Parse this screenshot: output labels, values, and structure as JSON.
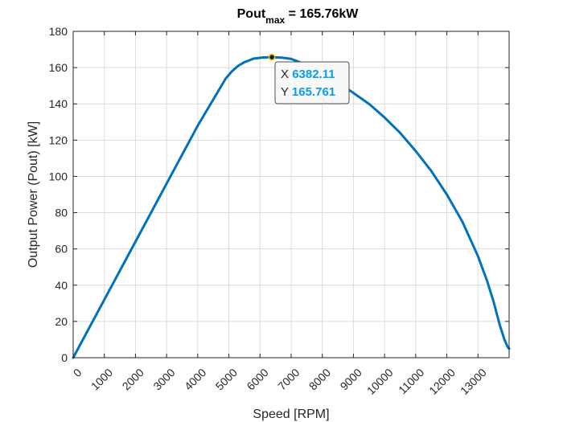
{
  "chart_data": {
    "type": "line",
    "title": {
      "main": "Pout",
      "subscript": "max",
      "suffix": " = 165.76kW"
    },
    "xlabel": "Speed [RPM]",
    "ylabel": "Output Power (Pout) [kW]",
    "xlim": [
      0,
      14000
    ],
    "ylim": [
      0,
      180
    ],
    "xticks": [
      0,
      1000,
      2000,
      3000,
      4000,
      5000,
      6000,
      7000,
      8000,
      9000,
      10000,
      11000,
      12000,
      13000
    ],
    "yticks": [
      0,
      20,
      40,
      60,
      80,
      100,
      120,
      140,
      160,
      180
    ],
    "grid": true,
    "series": [
      {
        "color": "#0072bd",
        "x": [
          0,
          1000,
          2000,
          3000,
          4000,
          4900,
          5100,
          5300,
          5500,
          5800,
          6100,
          6382.11,
          6700,
          7000,
          7500,
          8000,
          8500,
          9000,
          9500,
          10000,
          10500,
          11000,
          11500,
          12000,
          12500,
          13000,
          13300,
          13500,
          13700,
          13850,
          13950,
          14000
        ],
        "y": [
          0,
          32,
          64,
          96,
          128,
          154,
          158,
          161,
          163,
          165,
          165.6,
          165.761,
          165.5,
          164.8,
          161.5,
          157.5,
          152,
          146,
          140,
          132.5,
          124,
          114,
          103,
          90,
          75,
          56,
          42,
          31,
          18,
          10,
          6,
          5
        ]
      }
    ],
    "datatip": {
      "x_key": "X",
      "y_key": "Y",
      "x_value": "6382.11",
      "y_value": "165.761",
      "value_color": "#0a9cf0"
    }
  }
}
